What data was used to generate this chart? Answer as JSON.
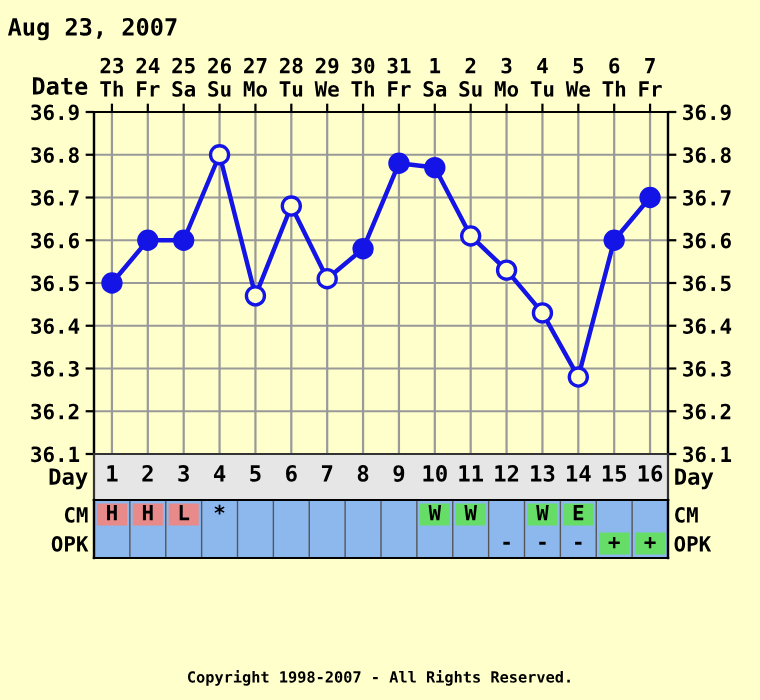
{
  "chart_data": [
    {
      "type": "line",
      "title": "Aug 23, 2007",
      "xlabel": "Date",
      "categories": [
        "23\nTh",
        "24\nFr",
        "25\nSa",
        "26\nSu",
        "27\nMo",
        "28\nTu",
        "29\nWe",
        "30\nTh",
        "31\nFr",
        "1\nSa",
        "2\nSu",
        "3\nMo",
        "4\nTu",
        "5\nWe",
        "6\nTh",
        "7\nFr"
      ],
      "series": [
        {
          "color": "#1414e6",
          "values": [
            36.5,
            36.6,
            36.6,
            36.8,
            36.47,
            36.68,
            36.51,
            36.58,
            36.78,
            36.77,
            36.61,
            36.53,
            36.43,
            36.28,
            36.6,
            36.7
          ],
          "colors": [
            "#1414e6",
            "#1414e6",
            "#1414e6",
            "#ffffcc",
            "#ffffcc",
            "#ffffcc",
            "#ffffcc",
            "#1414e6",
            "#1414e6",
            "#1414e6",
            "#ffffcc",
            "#ffffcc",
            "#ffffcc",
            "#ffffcc",
            "#1414e6",
            "#1414e6"
          ]
        }
      ],
      "marker": "circle",
      "line_style": "solid",
      "grid": true,
      "ylim": [
        36.1,
        36.9
      ],
      "yticks": [
        36.1,
        36.2,
        36.3,
        36.4,
        36.5,
        36.6,
        36.7,
        36.8,
        36.9
      ],
      "y2lim": [
        36.1,
        36.9
      ],
      "y2ticks": [
        36.1,
        36.2,
        36.3,
        36.4,
        36.5,
        36.6,
        36.7,
        36.8,
        36.9
      ]
    },
    {
      "type": "heatmap",
      "xlabel": "Day",
      "categories": [
        "1",
        "2",
        "3",
        "4",
        "5",
        "6",
        "7",
        "8",
        "9",
        "10",
        "11",
        "12",
        "13",
        "14",
        "15",
        "16"
      ],
      "y_categories": [
        "CM",
        "OPK"
      ],
      "y2_categories": [
        "CM",
        "OPK"
      ],
      "cells": [
        [
          null,
          null,
          null,
          null,
          null,
          null,
          null,
          null,
          null,
          null,
          null,
          null,
          null,
          null,
          null,
          null
        ],
        [
          null,
          null,
          null,
          null,
          null,
          null,
          null,
          null,
          null,
          null,
          null,
          null,
          null,
          null,
          null,
          null
        ]
      ],
      "cell_labels": [
        [
          "H",
          "H",
          "L",
          "*",
          null,
          null,
          null,
          null,
          null,
          "W",
          "W",
          null,
          "W",
          "E",
          null,
          null
        ],
        [
          null,
          null,
          null,
          null,
          null,
          null,
          null,
          null,
          null,
          null,
          null,
          "-",
          "-",
          "-",
          "+",
          "+"
        ]
      ],
      "colors": [
        [
          "#e88a8a",
          "#e88a8a",
          "#e88a8a",
          "#8cb8ee",
          "#8cb8ee",
          "#8cb8ee",
          "#8cb8ee",
          "#8cb8ee",
          "#8cb8ee",
          "#66dd66",
          "#66dd66",
          "#8cb8ee",
          "#66dd66",
          "#66dd66",
          "#8cb8ee",
          "#8cb8ee"
        ],
        [
          "#8cb8ee",
          "#8cb8ee",
          "#8cb8ee",
          "#8cb8ee",
          "#8cb8ee",
          "#8cb8ee",
          "#8cb8ee",
          "#8cb8ee",
          "#8cb8ee",
          "#8cb8ee",
          "#8cb8ee",
          "#8cb8ee",
          "#8cb8ee",
          "#8cb8ee",
          "#66dd66",
          "#66dd66"
        ]
      ],
      "annotations": [
        "Copyright 1998-2007 - All Rights Reserved."
      ]
    }
  ]
}
